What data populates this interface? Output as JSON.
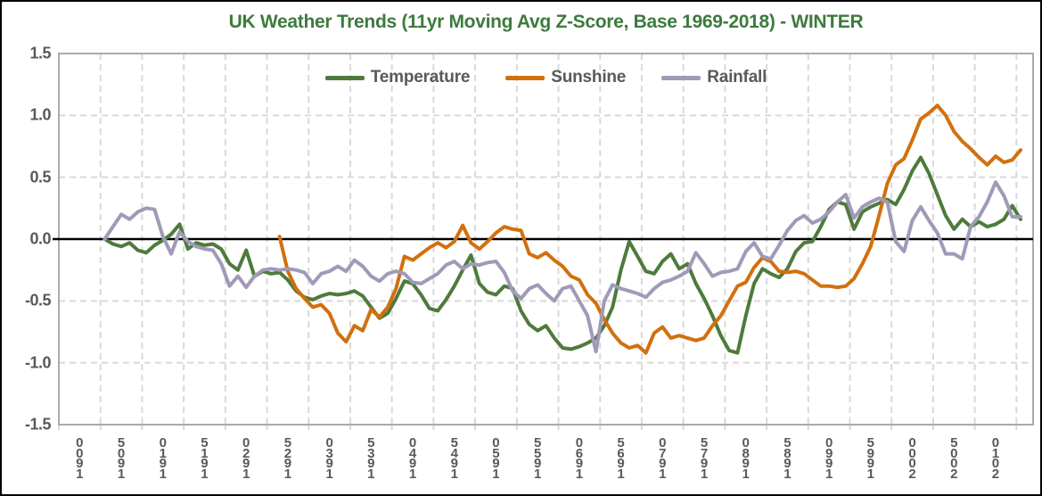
{
  "title": "UK Weather Trends (11yr Moving Avg Z-Score, Base 1969-2018) - WINTER",
  "colors": {
    "title_text": "#3D7A3E",
    "axis_text": "#595959",
    "gridline": "#D9D9D9",
    "plot_border": "#ABABAB",
    "zero_line": "#000000",
    "background": "#FFFFFF"
  },
  "chart_data": {
    "type": "line",
    "title": "UK Weather Trends (11yr Moving Avg Z-Score, Base 1969-2018) - WINTER",
    "xlabel": "",
    "ylabel": "",
    "grid": "dashed",
    "legend_position": "top-center",
    "x_axis": {
      "label_years": [
        1900,
        1905,
        1910,
        1915,
        1920,
        1925,
        1930,
        1935,
        1940,
        1945,
        1950,
        1955,
        1960,
        1965,
        1970,
        1975,
        1980,
        1985,
        1990,
        1995,
        2000,
        2005,
        2010
      ],
      "labels_rotated_reading_bottom_to_top": true,
      "range_years": [
        1897.5,
        2014.5
      ],
      "gridline_step_years": 5
    },
    "y_axis": {
      "ticks": [
        "1.5",
        "1.0",
        "0.5",
        "0.0",
        "-0.5",
        "-1.0",
        "-1.5"
      ],
      "min": -1.5,
      "max": 1.5,
      "step": 0.5
    },
    "series": [
      {
        "name": "Temperature",
        "color": "#4E7B3C",
        "start_year": 1903,
        "values": [
          0.0,
          -0.04,
          -0.06,
          -0.03,
          -0.09,
          -0.11,
          -0.05,
          -0.01,
          0.04,
          0.12,
          -0.08,
          -0.03,
          -0.05,
          -0.04,
          -0.08,
          -0.2,
          -0.25,
          -0.09,
          -0.3,
          -0.26,
          -0.28,
          -0.27,
          -0.33,
          -0.42,
          -0.47,
          -0.49,
          -0.46,
          -0.44,
          -0.45,
          -0.44,
          -0.42,
          -0.46,
          -0.55,
          -0.64,
          -0.6,
          -0.48,
          -0.34,
          -0.36,
          -0.45,
          -0.56,
          -0.58,
          -0.49,
          -0.38,
          -0.25,
          -0.13,
          -0.36,
          -0.43,
          -0.45,
          -0.38,
          -0.4,
          -0.58,
          -0.69,
          -0.74,
          -0.7,
          -0.8,
          -0.88,
          -0.89,
          -0.87,
          -0.84,
          -0.8,
          -0.7,
          -0.55,
          -0.25,
          -0.02,
          -0.14,
          -0.26,
          -0.28,
          -0.18,
          -0.12,
          -0.24,
          -0.2,
          -0.36,
          -0.48,
          -0.62,
          -0.78,
          -0.9,
          -0.92,
          -0.62,
          -0.36,
          -0.24,
          -0.28,
          -0.31,
          -0.24,
          -0.1,
          -0.03,
          -0.02,
          0.1,
          0.24,
          0.3,
          0.28,
          0.08,
          0.22,
          0.26,
          0.29,
          0.32,
          0.28,
          0.4,
          0.55,
          0.66,
          0.53,
          0.36,
          0.19,
          0.08,
          0.16,
          0.1,
          0.14,
          0.1,
          0.12,
          0.16,
          0.27,
          0.16
        ]
      },
      {
        "name": "Sunshine",
        "color": "#D2700E",
        "start_year": 1924,
        "values": [
          0.02,
          -0.26,
          -0.4,
          -0.48,
          -0.55,
          -0.53,
          -0.6,
          -0.76,
          -0.83,
          -0.7,
          -0.74,
          -0.57,
          -0.63,
          -0.55,
          -0.4,
          -0.14,
          -0.17,
          -0.12,
          -0.07,
          -0.03,
          -0.07,
          -0.02,
          0.11,
          -0.03,
          -0.08,
          -0.02,
          0.05,
          0.1,
          0.08,
          0.07,
          -0.12,
          -0.15,
          -0.11,
          -0.17,
          -0.22,
          -0.3,
          -0.33,
          -0.45,
          -0.52,
          -0.65,
          -0.76,
          -0.84,
          -0.88,
          -0.86,
          -0.92,
          -0.76,
          -0.71,
          -0.8,
          -0.78,
          -0.8,
          -0.82,
          -0.8,
          -0.7,
          -0.62,
          -0.5,
          -0.38,
          -0.35,
          -0.23,
          -0.15,
          -0.18,
          -0.26,
          -0.27,
          -0.26,
          -0.28,
          -0.33,
          -0.38,
          -0.38,
          -0.39,
          -0.38,
          -0.32,
          -0.2,
          -0.06,
          0.19,
          0.45,
          0.6,
          0.65,
          0.8,
          0.97,
          1.02,
          1.08,
          1.0,
          0.87,
          0.79,
          0.73,
          0.66,
          0.6,
          0.67,
          0.62,
          0.64,
          0.72
        ]
      },
      {
        "name": "Rainfall",
        "color": "#A09AB8",
        "start_year": 1903,
        "values": [
          0.0,
          0.1,
          0.2,
          0.16,
          0.22,
          0.25,
          0.24,
          0.02,
          -0.12,
          0.06,
          -0.02,
          -0.06,
          -0.08,
          -0.09,
          -0.2,
          -0.38,
          -0.3,
          -0.39,
          -0.3,
          -0.25,
          -0.24,
          -0.25,
          -0.24,
          -0.25,
          -0.27,
          -0.36,
          -0.28,
          -0.26,
          -0.22,
          -0.26,
          -0.17,
          -0.22,
          -0.3,
          -0.34,
          -0.28,
          -0.26,
          -0.28,
          -0.35,
          -0.36,
          -0.32,
          -0.28,
          -0.21,
          -0.18,
          -0.24,
          -0.2,
          -0.21,
          -0.19,
          -0.18,
          -0.27,
          -0.42,
          -0.48,
          -0.4,
          -0.37,
          -0.44,
          -0.5,
          -0.4,
          -0.38,
          -0.5,
          -0.62,
          -0.91,
          -0.5,
          -0.37,
          -0.4,
          -0.42,
          -0.44,
          -0.47,
          -0.4,
          -0.35,
          -0.33,
          -0.3,
          -0.26,
          -0.11,
          -0.2,
          -0.3,
          -0.27,
          -0.26,
          -0.24,
          -0.1,
          -0.03,
          -0.14,
          -0.16,
          -0.05,
          0.07,
          0.15,
          0.19,
          0.13,
          0.16,
          0.22,
          0.3,
          0.36,
          0.17,
          0.26,
          0.3,
          0.33,
          0.3,
          -0.02,
          -0.1,
          0.15,
          0.26,
          0.15,
          0.05,
          -0.12,
          -0.12,
          -0.16,
          0.1,
          0.18,
          0.3,
          0.46,
          0.35,
          0.18,
          0.18
        ]
      }
    ]
  }
}
